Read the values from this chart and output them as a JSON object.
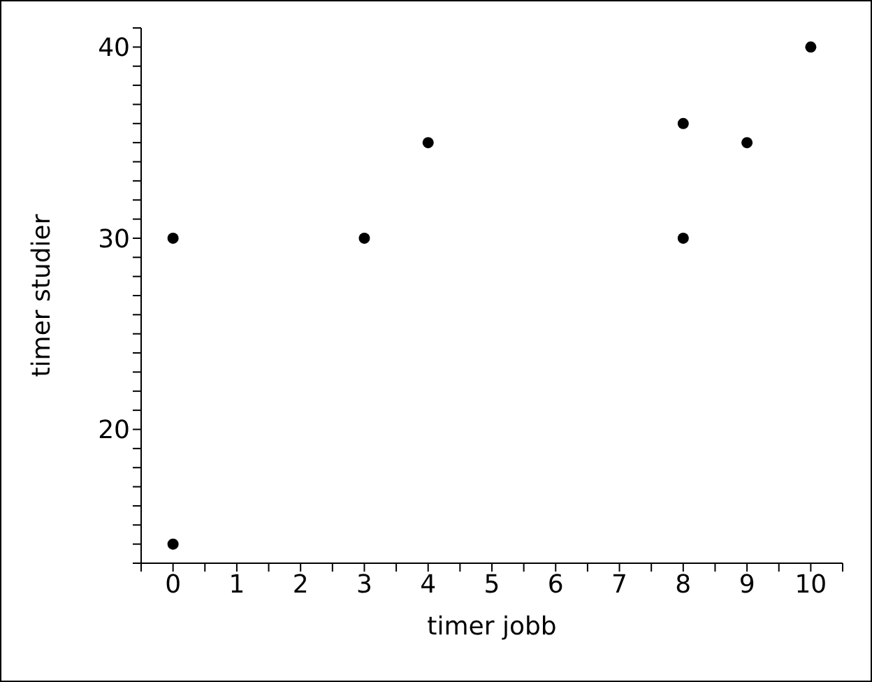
{
  "chart_data": {
    "type": "scatter",
    "xlabel": "timer jobb",
    "ylabel": "timer studier",
    "x": [
      0,
      0,
      3,
      4,
      8,
      8,
      9,
      10
    ],
    "values": [
      14,
      30,
      30,
      35,
      36,
      30,
      35,
      40
    ],
    "color": "#000000",
    "marker": "circle",
    "grid": false,
    "legend": false,
    "xlim": [
      -0.5,
      10.5
    ],
    "xticks": [
      {
        "value": -0.5,
        "label": null
      },
      0,
      {
        "value": 0.5,
        "label": null
      },
      1,
      {
        "value": 1.5,
        "label": null
      },
      2,
      {
        "value": 2.5,
        "label": null
      },
      3,
      {
        "value": 3.5,
        "label": null
      },
      4,
      {
        "value": 4.5,
        "label": null
      },
      5,
      {
        "value": 5.5,
        "label": null
      },
      6,
      {
        "value": 6.5,
        "label": null
      },
      7,
      {
        "value": 7.5,
        "label": null
      },
      8,
      {
        "value": 8.5,
        "label": null
      },
      9,
      {
        "value": 9.5,
        "label": null
      },
      10,
      {
        "value": 10.5,
        "label": null
      }
    ],
    "ylim": [
      13,
      41
    ],
    "yticks": [
      {
        "value": 13,
        "label": null
      },
      {
        "value": 14,
        "label": null
      },
      {
        "value": 15,
        "label": null
      },
      {
        "value": 16,
        "label": null
      },
      {
        "value": 17,
        "label": null
      },
      {
        "value": 18,
        "label": null
      },
      {
        "value": 19,
        "label": null
      },
      20,
      {
        "value": 21,
        "label": null
      },
      {
        "value": 22,
        "label": null
      },
      {
        "value": 23,
        "label": null
      },
      {
        "value": 24,
        "label": null
      },
      {
        "value": 25,
        "label": null
      },
      {
        "value": 26,
        "label": null
      },
      {
        "value": 27,
        "label": null
      },
      {
        "value": 28,
        "label": null
      },
      {
        "value": 29,
        "label": null
      },
      30,
      {
        "value": 31,
        "label": null
      },
      {
        "value": 32,
        "label": null
      },
      {
        "value": 33,
        "label": null
      },
      {
        "value": 34,
        "label": null
      },
      {
        "value": 35,
        "label": null
      },
      {
        "value": 36,
        "label": null
      },
      {
        "value": 37,
        "label": null
      },
      {
        "value": 38,
        "label": null
      },
      {
        "value": 39,
        "label": null
      },
      40,
      {
        "value": 41,
        "label": null
      }
    ]
  }
}
